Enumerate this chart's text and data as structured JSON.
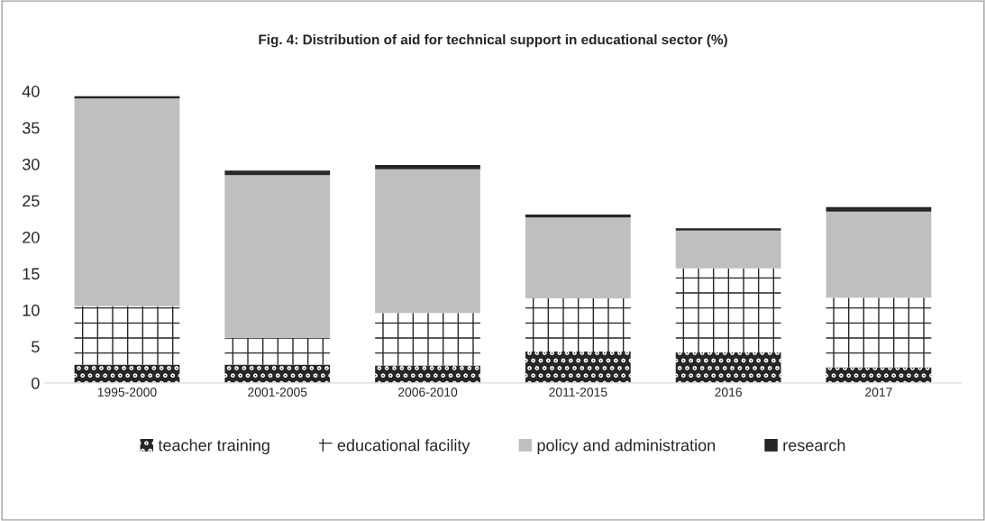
{
  "chart_data": {
    "type": "bar",
    "title": "Fig. 4: Distribution of aid for technical support in educational sector (%)",
    "categories": [
      "1995-2000",
      "2001-2005",
      "2006-2010",
      "2011-2015",
      "2016",
      "2017"
    ],
    "stacked": true,
    "series": [
      {
        "name": "teacher training",
        "color": "#262626",
        "values": [
          2.5,
          2.5,
          2.4,
          4.3,
          4.2,
          2.1
        ]
      },
      {
        "name": "educational facility",
        "color": "#ffffff",
        "values": [
          8.0,
          3.7,
          7.2,
          7.3,
          11.5,
          9.6
        ]
      },
      {
        "name": "policy and administration",
        "color": "#bfbfbf",
        "values": [
          28.5,
          22.3,
          19.7,
          11.1,
          5.2,
          11.8
        ]
      },
      {
        "name": "research",
        "color": "#262626",
        "values": [
          0.3,
          0.6,
          0.6,
          0.4,
          0.3,
          0.6
        ]
      }
    ],
    "ylim": [
      0,
      40
    ],
    "yticks": [
      0,
      5,
      10,
      15,
      20,
      25,
      30,
      35,
      40
    ],
    "grid": false,
    "legend": "bottom"
  }
}
